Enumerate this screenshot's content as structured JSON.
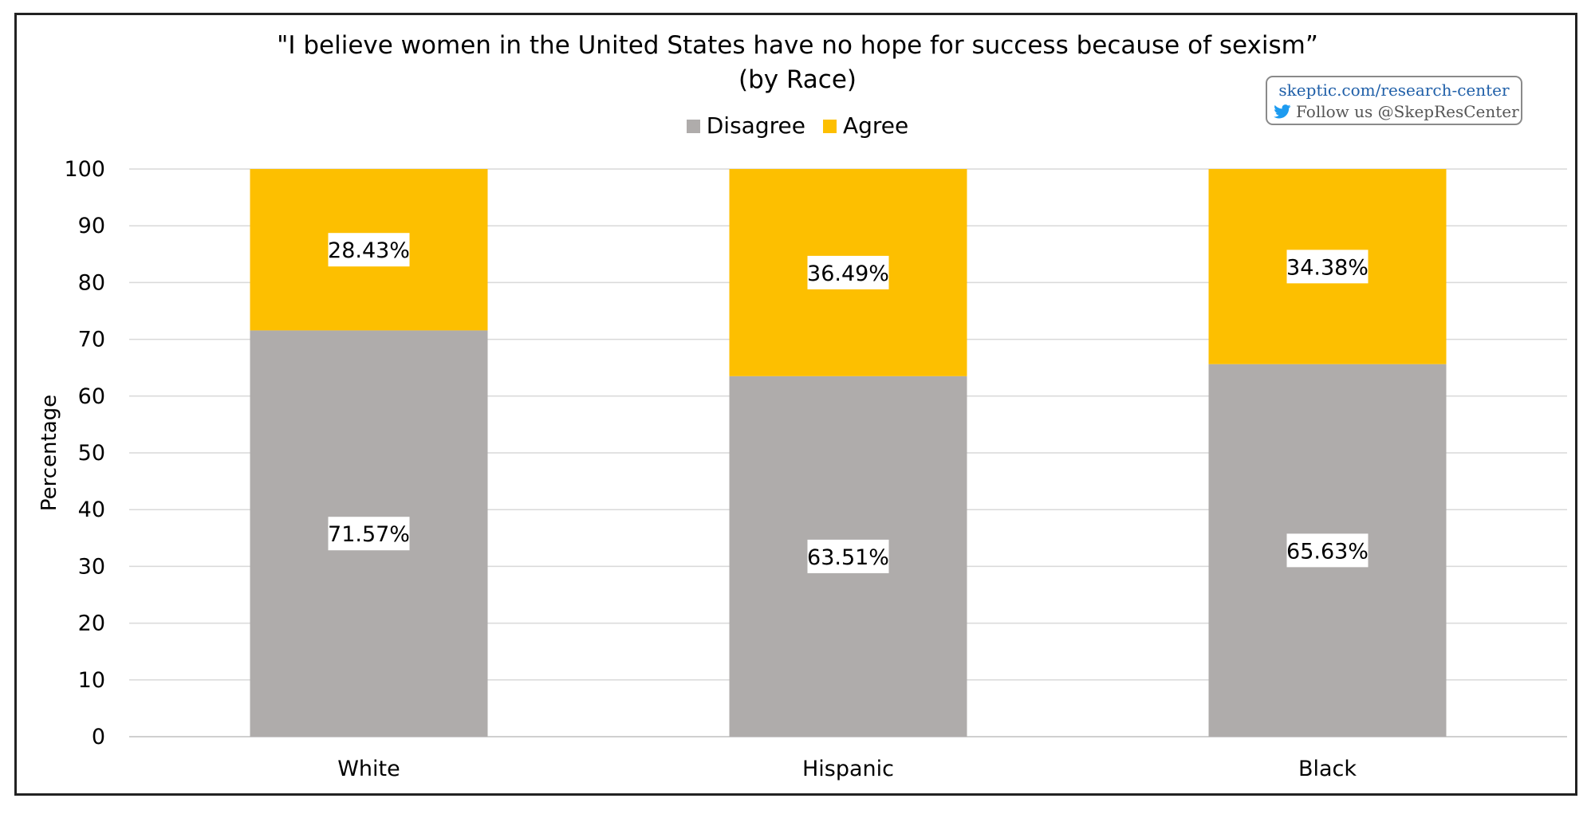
{
  "chart_data": {
    "type": "bar",
    "stacked": true,
    "title": "\"I believe women in the United States have no hope for success because of sexism”",
    "subtitle": "(by Race)",
    "categories": [
      "White",
      "Hispanic",
      "Black"
    ],
    "series": [
      {
        "name": "Disagree",
        "values": [
          71.57,
          63.51,
          65.63
        ],
        "labels": [
          "71.57%",
          "63.51%",
          "65.63%"
        ],
        "color": "#afacab"
      },
      {
        "name": "Agree",
        "values": [
          28.43,
          36.49,
          34.38
        ],
        "labels": [
          "28.43%",
          "36.49%",
          "34.38%"
        ],
        "color": "#fdbf00"
      }
    ],
    "xlabel": "",
    "ylabel": "Percentage",
    "ylim": [
      0,
      100
    ],
    "yticks": [
      "0",
      "10",
      "20",
      "30",
      "40",
      "50",
      "60",
      "70",
      "80",
      "90",
      "100"
    ],
    "grid": true,
    "legend_position": "top"
  },
  "badge": {
    "url": "skeptic.com/research-center",
    "follow": "Follow us @SkepResCenter",
    "icon": "twitter-bird-icon"
  }
}
